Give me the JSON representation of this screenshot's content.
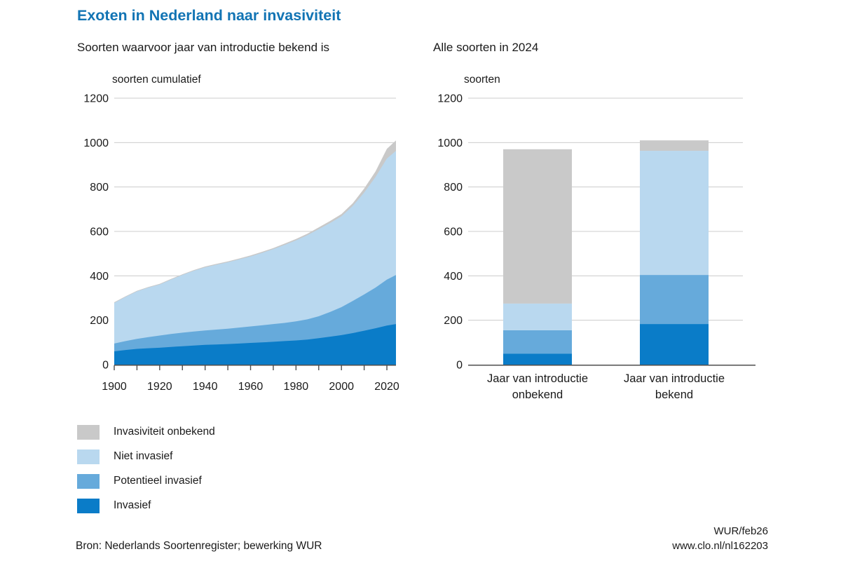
{
  "title": "Exoten in Nederland naar invasiviteit",
  "left_chart": {
    "subtitle": "Soorten waarvoor jaar van introductie bekend is",
    "unit_label": "soorten cumulatief"
  },
  "right_chart": {
    "subtitle": "Alle soorten in 2024",
    "unit_label": "soorten"
  },
  "legend": {
    "position": "bottom-left",
    "items": [
      {
        "label": "Invasiviteit onbekend",
        "color": "#c9c9c9"
      },
      {
        "label": "Niet invasief",
        "color": "#b9d8ef"
      },
      {
        "label": "Potentieel invasief",
        "color": "#66aadb"
      },
      {
        "label": "Invasief",
        "color": "#0a7cc8"
      }
    ]
  },
  "footer": {
    "source": "Bron: Nederlands Soortenregister; bewerking WUR",
    "credit_line1": "WUR/feb26",
    "credit_line2": "www.clo.nl/nl162203"
  },
  "colors": {
    "title": "#1274b4",
    "text": "#1a1a1a",
    "grid": "#cccccc",
    "axis": "#4d4d4d"
  },
  "chart_data": [
    {
      "type": "area",
      "stacked": true,
      "title": "Soorten waarvoor jaar van introductie bekend is",
      "xlabel": "",
      "ylabel": "soorten cumulatief",
      "ylim": [
        0,
        1200
      ],
      "grid": true,
      "y_ticks": [
        0,
        200,
        400,
        600,
        800,
        1000,
        1200
      ],
      "x_label_ticks": [
        1900,
        1920,
        1940,
        1960,
        1980,
        2000,
        2020
      ],
      "x_minor_ticks": [
        1900,
        1910,
        1920,
        1930,
        1940,
        1950,
        1960,
        1970,
        1980,
        1990,
        2000,
        2010,
        2020
      ],
      "x_range": [
        1900,
        2024
      ],
      "x": [
        1900,
        1905,
        1910,
        1915,
        1920,
        1925,
        1930,
        1935,
        1940,
        1945,
        1950,
        1955,
        1960,
        1965,
        1970,
        1975,
        1980,
        1985,
        1990,
        1995,
        2000,
        2005,
        2010,
        2015,
        2020,
        2024
      ],
      "series": [
        {
          "name": "Invasief",
          "color": "#0a7cc8",
          "values": [
            60,
            66,
            71,
            74,
            76,
            80,
            83,
            86,
            89,
            91,
            93,
            95,
            98,
            100,
            103,
            106,
            109,
            113,
            119,
            126,
            133,
            142,
            153,
            164,
            176,
            183
          ]
        },
        {
          "name": "Potentieel invasief",
          "color": "#66aadb",
          "values": [
            35,
            40,
            45,
            50,
            55,
            58,
            61,
            63,
            65,
            67,
            69,
            72,
            74,
            77,
            80,
            82,
            86,
            91,
            99,
            111,
            126,
            145,
            163,
            183,
            207,
            221
          ]
        },
        {
          "name": "Niet invasief",
          "color": "#b9d8ef",
          "values": [
            183,
            199,
            214,
            223,
            230,
            245,
            260,
            274,
            284,
            292,
            299,
            307,
            315,
            326,
            337,
            351,
            365,
            379,
            392,
            401,
            409,
            428,
            459,
            498,
            545,
            559
          ]
        },
        {
          "name": "Invasiviteit onbekend",
          "color": "#c9c9c9",
          "values": [
            3,
            3,
            3,
            3,
            3,
            3,
            3,
            3,
            4,
            4,
            4,
            4,
            5,
            5,
            5,
            6,
            6,
            7,
            8,
            9,
            10,
            12,
            18,
            25,
            44,
            47
          ]
        }
      ]
    },
    {
      "type": "bar",
      "stacked": true,
      "title": "Alle soorten in 2024",
      "xlabel": "",
      "ylabel": "soorten",
      "ylim": [
        0,
        1200
      ],
      "grid": true,
      "y_ticks": [
        0,
        200,
        400,
        600,
        800,
        1000,
        1200
      ],
      "categories": [
        "Jaar van introductie onbekend",
        "Jaar van introductie bekend"
      ],
      "category_lines": [
        [
          "Jaar van introductie",
          "onbekend"
        ],
        [
          "Jaar van introductie",
          "bekend"
        ]
      ],
      "series": [
        {
          "name": "Invasief",
          "color": "#0a7cc8",
          "values": [
            50,
            183
          ]
        },
        {
          "name": "Potentieel invasief",
          "color": "#66aadb",
          "values": [
            105,
            221
          ]
        },
        {
          "name": "Niet invasief",
          "color": "#b9d8ef",
          "values": [
            120,
            559
          ]
        },
        {
          "name": "Invasiviteit onbekend",
          "color": "#c9c9c9",
          "values": [
            695,
            47
          ]
        }
      ],
      "totals": [
        970,
        1010
      ]
    }
  ]
}
